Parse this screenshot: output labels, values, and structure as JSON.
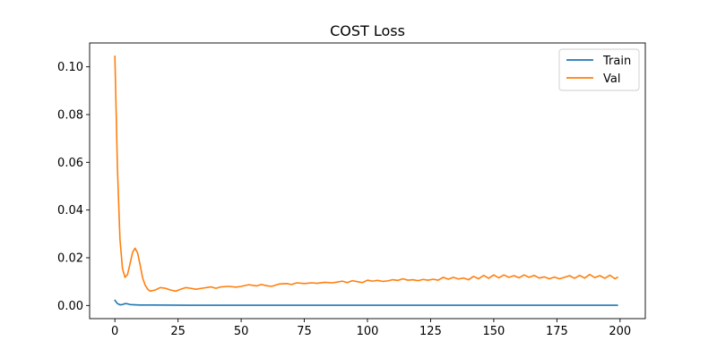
{
  "chart_data": {
    "type": "line",
    "title": "COST Loss",
    "xlabel": "",
    "ylabel": "",
    "xlim": [
      -10,
      210
    ],
    "ylim": [
      -0.0055,
      0.11
    ],
    "xticks": [
      0,
      25,
      50,
      75,
      100,
      125,
      150,
      175,
      200
    ],
    "xtick_labels": [
      "0",
      "25",
      "50",
      "75",
      "100",
      "125",
      "150",
      "175",
      "200"
    ],
    "yticks": [
      0.0,
      0.02,
      0.04,
      0.06,
      0.08,
      0.1
    ],
    "ytick_labels": [
      "0.00",
      "0.02",
      "0.04",
      "0.06",
      "0.08",
      "0.10"
    ],
    "grid": false,
    "legend_position": "top-right",
    "series": [
      {
        "name": "Train",
        "color": "#1f77b4",
        "points": [
          [
            0,
            0.0022
          ],
          [
            1,
            0.0008
          ],
          [
            2,
            0.0003
          ],
          [
            3,
            0.0004
          ],
          [
            4,
            0.0008
          ],
          [
            5,
            0.0007
          ],
          [
            6,
            0.0004
          ],
          [
            8,
            0.0003
          ],
          [
            10,
            0.0002
          ],
          [
            15,
            0.0002
          ],
          [
            30,
            0.0001
          ],
          [
            60,
            0.0001
          ],
          [
            100,
            0.0001
          ],
          [
            150,
            0.0001
          ],
          [
            199,
            0.0001
          ]
        ]
      },
      {
        "name": "Val",
        "color": "#ff7f0e",
        "points": [
          [
            0,
            0.1045
          ],
          [
            1,
            0.058
          ],
          [
            2,
            0.028
          ],
          [
            3,
            0.0155
          ],
          [
            4,
            0.0118
          ],
          [
            5,
            0.013
          ],
          [
            6,
            0.0175
          ],
          [
            7,
            0.0222
          ],
          [
            8,
            0.024
          ],
          [
            9,
            0.022
          ],
          [
            10,
            0.017
          ],
          [
            11,
            0.0115
          ],
          [
            12,
            0.0085
          ],
          [
            13,
            0.0068
          ],
          [
            14,
            0.006
          ],
          [
            16,
            0.0065
          ],
          [
            18,
            0.0075
          ],
          [
            20,
            0.0072
          ],
          [
            22,
            0.0065
          ],
          [
            24,
            0.006
          ],
          [
            26,
            0.0068
          ],
          [
            28,
            0.0075
          ],
          [
            30,
            0.0072
          ],
          [
            32,
            0.0068
          ],
          [
            35,
            0.0073
          ],
          [
            38,
            0.0078
          ],
          [
            40,
            0.0072
          ],
          [
            42,
            0.0078
          ],
          [
            45,
            0.008
          ],
          [
            48,
            0.0077
          ],
          [
            50,
            0.008
          ],
          [
            53,
            0.0087
          ],
          [
            56,
            0.0082
          ],
          [
            58,
            0.0088
          ],
          [
            60,
            0.0083
          ],
          [
            62,
            0.008
          ],
          [
            65,
            0.009
          ],
          [
            68,
            0.0092
          ],
          [
            70,
            0.0088
          ],
          [
            72,
            0.0095
          ],
          [
            75,
            0.0092
          ],
          [
            78,
            0.0095
          ],
          [
            80,
            0.0093
          ],
          [
            83,
            0.0097
          ],
          [
            86,
            0.0095
          ],
          [
            88,
            0.0098
          ],
          [
            90,
            0.0102
          ],
          [
            92,
            0.0096
          ],
          [
            94,
            0.0104
          ],
          [
            96,
            0.01
          ],
          [
            98,
            0.0096
          ],
          [
            100,
            0.0106
          ],
          [
            102,
            0.0102
          ],
          [
            104,
            0.0105
          ],
          [
            106,
            0.0101
          ],
          [
            108,
            0.0103
          ],
          [
            110,
            0.0108
          ],
          [
            112,
            0.0105
          ],
          [
            114,
            0.0112
          ],
          [
            116,
            0.0106
          ],
          [
            118,
            0.0108
          ],
          [
            120,
            0.0104
          ],
          [
            122,
            0.0109
          ],
          [
            124,
            0.0106
          ],
          [
            126,
            0.011
          ],
          [
            128,
            0.0106
          ],
          [
            130,
            0.0118
          ],
          [
            132,
            0.011
          ],
          [
            134,
            0.0118
          ],
          [
            136,
            0.0111
          ],
          [
            138,
            0.0115
          ],
          [
            140,
            0.0108
          ],
          [
            142,
            0.0122
          ],
          [
            144,
            0.0112
          ],
          [
            146,
            0.0126
          ],
          [
            148,
            0.0114
          ],
          [
            150,
            0.0128
          ],
          [
            152,
            0.0116
          ],
          [
            154,
            0.0128
          ],
          [
            156,
            0.0118
          ],
          [
            158,
            0.0125
          ],
          [
            160,
            0.0116
          ],
          [
            162,
            0.0128
          ],
          [
            164,
            0.0118
          ],
          [
            166,
            0.0126
          ],
          [
            168,
            0.0115
          ],
          [
            170,
            0.012
          ],
          [
            172,
            0.0112
          ],
          [
            174,
            0.0119
          ],
          [
            176,
            0.0112
          ],
          [
            178,
            0.0118
          ],
          [
            180,
            0.0125
          ],
          [
            182,
            0.0114
          ],
          [
            184,
            0.0126
          ],
          [
            186,
            0.0115
          ],
          [
            188,
            0.013
          ],
          [
            190,
            0.0117
          ],
          [
            192,
            0.0125
          ],
          [
            194,
            0.0114
          ],
          [
            196,
            0.0127
          ],
          [
            198,
            0.0112
          ],
          [
            199,
            0.0118
          ]
        ]
      }
    ]
  }
}
